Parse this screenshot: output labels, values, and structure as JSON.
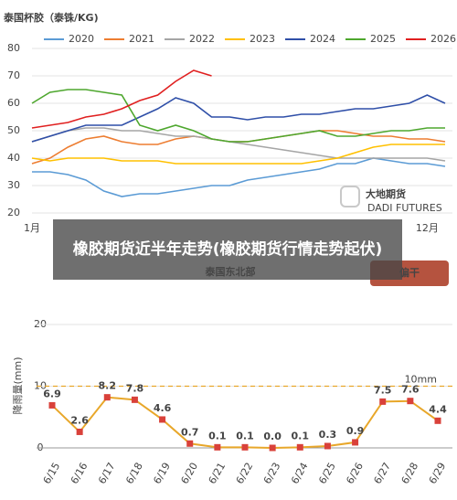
{
  "chart_data": [
    {
      "type": "line",
      "title": "泰国杯胶（泰铢/KG)",
      "categories": [
        "1月",
        null,
        null,
        null,
        null,
        null,
        null,
        null,
        null,
        null,
        null,
        null,
        null,
        null,
        null,
        null,
        null,
        null,
        null,
        null,
        null,
        null,
        "12月",
        null
      ],
      "ylim": [
        20,
        80
      ],
      "yticks": [
        20,
        30,
        40,
        50,
        60,
        70,
        80
      ],
      "grid": true,
      "watermark": {
        "title": "大地期货",
        "subtitle": "DADI FUTURES"
      },
      "series": [
        {
          "name": "2020",
          "color": "#5b9bd5",
          "values": [
            35,
            35,
            34,
            32,
            28,
            26,
            27,
            27,
            28,
            29,
            30,
            30,
            32,
            33,
            34,
            35,
            36,
            38,
            38,
            40,
            39,
            38,
            38,
            37
          ]
        },
        {
          "name": "2021",
          "color": "#ed7d31",
          "values": [
            38,
            40,
            44,
            47,
            48,
            46,
            45,
            45,
            47,
            48,
            47,
            46,
            46,
            47,
            48,
            49,
            50,
            50,
            49,
            48,
            48,
            47,
            47,
            46
          ]
        },
        {
          "name": "2022",
          "color": "#a5a5a5",
          "values": [
            46,
            48,
            50,
            51,
            51,
            50,
            50,
            49,
            48,
            48,
            47,
            46,
            45,
            44,
            43,
            42,
            41,
            40,
            40,
            40,
            40,
            40,
            40,
            39
          ]
        },
        {
          "name": "2023",
          "color": "#ffc000",
          "values": [
            40,
            39,
            40,
            40,
            40,
            39,
            39,
            39,
            38,
            38,
            38,
            38,
            38,
            38,
            38,
            38,
            39,
            40,
            42,
            44,
            45,
            45,
            45,
            45
          ]
        },
        {
          "name": "2024",
          "color": "#2f4fa8",
          "values": [
            46,
            48,
            50,
            52,
            52,
            52,
            55,
            58,
            62,
            60,
            55,
            55,
            54,
            55,
            55,
            56,
            56,
            57,
            58,
            58,
            59,
            60,
            63,
            60
          ]
        },
        {
          "name": "2025",
          "color": "#4ea72e",
          "values": [
            60,
            64,
            65,
            65,
            64,
            63,
            52,
            50,
            52,
            50,
            47,
            46,
            46,
            47,
            48,
            49,
            50,
            48,
            48,
            49,
            50,
            50,
            51,
            51
          ]
        },
        {
          "name": "2026",
          "color": "#e02020",
          "values": [
            51,
            52,
            53,
            55,
            56,
            58,
            61,
            63,
            68,
            72,
            70,
            null,
            null,
            null,
            null,
            null,
            null,
            null,
            null,
            null,
            null,
            null,
            null,
            null
          ]
        }
      ]
    },
    {
      "type": "line",
      "title": "泰国东北部",
      "badge": "偏干",
      "y_label": "降雨量(mm)",
      "categories": [
        "6/15",
        "6/16",
        "6/17",
        "6/18",
        "6/19",
        "6/20",
        "6/21",
        "6/22",
        "6/23",
        "6/24",
        "6/25",
        "6/26",
        "6/27",
        "6/28",
        "6/29"
      ],
      "values": [
        6.9,
        2.6,
        8.2,
        7.8,
        4.6,
        0.7,
        0.1,
        0.1,
        0.0,
        0.1,
        0.3,
        0.9,
        7.5,
        7.6,
        4.4
      ],
      "value_labels": [
        "6.9",
        "2.6",
        "8.2",
        "7.8",
        "4.6",
        "0.7",
        "0.1",
        "0.1",
        "0.0",
        "0.1",
        "0.3",
        "0.9",
        "7.5",
        "7.6",
        "4.4"
      ],
      "color": "#e8a72a",
      "marker_color": "#d9413a",
      "ylim": [
        0,
        20
      ],
      "yticks": [
        0,
        10,
        20
      ],
      "grid": true,
      "reference_line": {
        "value": 10,
        "label": "10mm"
      }
    }
  ],
  "overlay": {
    "text": "橡胶期货近半年走势(橡胶期货行情走势起伏)"
  }
}
